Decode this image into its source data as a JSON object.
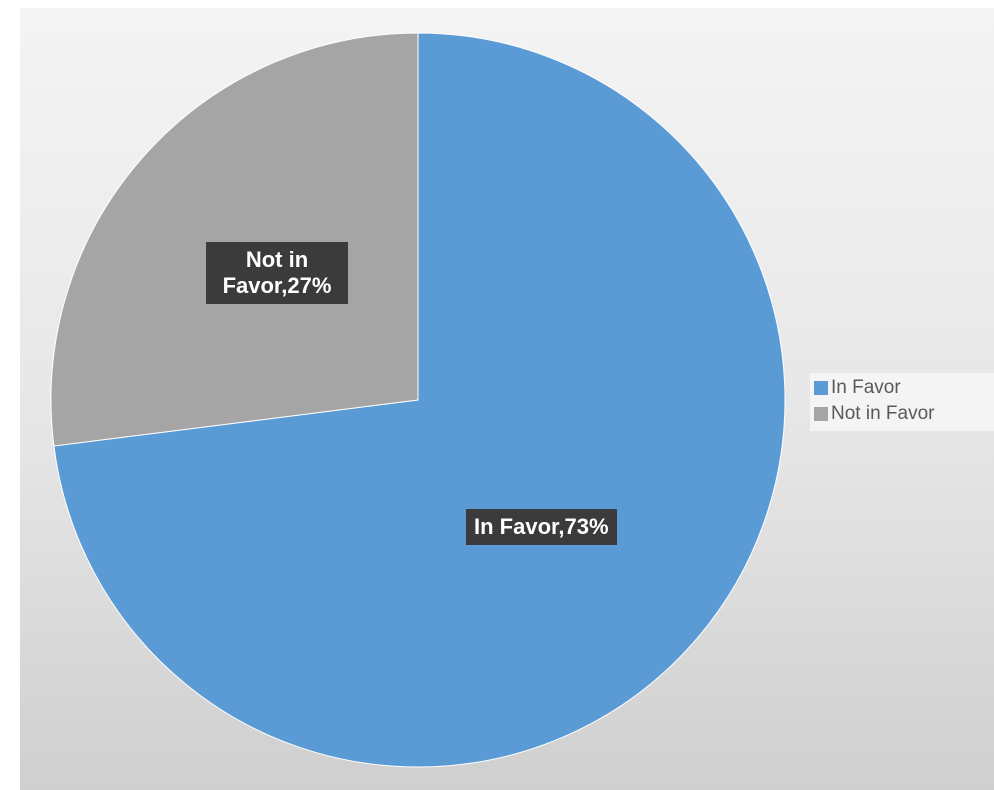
{
  "chart_data": {
    "type": "pie",
    "title": "",
    "slices": [
      {
        "label": "In Favor",
        "value": 73,
        "color": "#5b9bd5",
        "data_label": "In Favor,73%"
      },
      {
        "label": "Not in Favor",
        "value": 27,
        "color": "#a5a5a5",
        "data_label": "Not in\nFavor,27%"
      }
    ],
    "start_angle_deg": 0,
    "direction": "clockwise",
    "legend": {
      "position": "right",
      "entries": [
        "In Favor",
        "Not in Favor"
      ]
    }
  }
}
